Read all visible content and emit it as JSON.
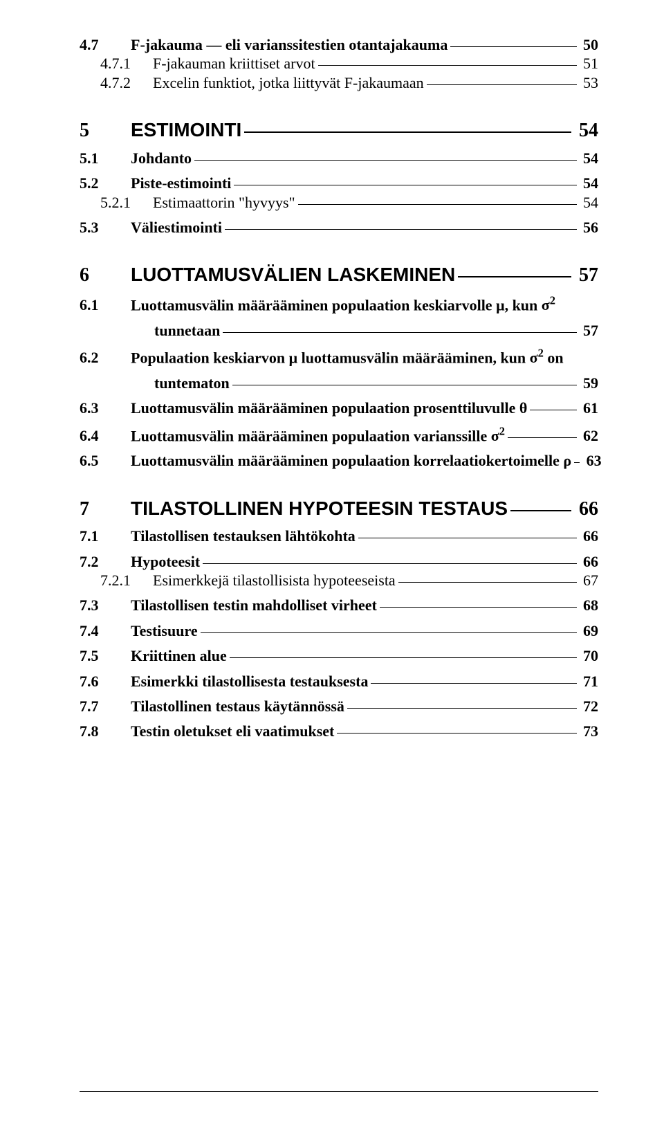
{
  "greek": {
    "mu": "μ",
    "sigma": "σ",
    "theta": "θ",
    "rho": "ρ"
  },
  "sup2": "2",
  "toc": [
    {
      "lvl": "l2",
      "num": "4.7",
      "text": "F-jakauma — eli varianssitestien otantajakauma",
      "page": "50"
    },
    {
      "lvl": "l3",
      "num": "4.7.1",
      "text": "F-jakauman kriittiset arvot",
      "page": "51"
    },
    {
      "lvl": "l3",
      "num": "4.7.2",
      "text": "Excelin funktiot, jotka liittyvät  F-jakaumaan",
      "page": "53",
      "gap": true
    },
    {
      "lvl": "l1",
      "num": "5",
      "text": "ESTIMOINTI",
      "page": "54"
    },
    {
      "lvl": "l2",
      "num": "5.1",
      "text": "Johdanto",
      "page": "54",
      "gap": true
    },
    {
      "lvl": "l2",
      "num": "5.2",
      "text": "Piste-estimointi",
      "page": "54"
    },
    {
      "lvl": "l3",
      "num": "5.2.1",
      "text": "Estimaattorin \"hyvyys\"",
      "page": "54",
      "gap": true
    },
    {
      "lvl": "l2",
      "num": "5.3",
      "text": "Väliestimointi",
      "page": "56"
    },
    {
      "lvl": "l1",
      "num": "6",
      "text": "LUOTTAMUSVÄLIEN LASKEMINEN",
      "page": "57"
    },
    {
      "lvl": "l2",
      "num": "6.1",
      "text_a": "Luottamusvälin määrääminen populaation keskiarvolle  ",
      "greek_a": "mu",
      "text_b": ",  kun  ",
      "greek_b": "sigma",
      "sup_b": true,
      "wrap": true,
      "text_c": "tunnetaan",
      "page": "57",
      "gap": true
    },
    {
      "lvl": "l2",
      "num": "6.2",
      "text_a": "Populaation keskiarvon  ",
      "greek_a": "mu",
      "text_b": "  luottamusvälin määrääminen, kun  ",
      "greek_b": "sigma",
      "sup_b": true,
      "text_d": "  on",
      "wrap": true,
      "text_c": "tuntematon",
      "page": "59",
      "gap": true
    },
    {
      "lvl": "l2",
      "num": "6.3",
      "text_a": "Luottamusvälin määrääminen populaation prosenttiluvulle  ",
      "greek_a": "theta",
      "page": "61",
      "gap": true
    },
    {
      "lvl": "l2",
      "num": "6.4",
      "text_a": "Luottamusvälin määrääminen populaation varianssille  ",
      "greek_a": "sigma",
      "sup_a": true,
      "page": "62",
      "gap": true
    },
    {
      "lvl": "l2",
      "num": "6.5",
      "text_a": "Luottamusvälin määrääminen populaation korrelaatiokertoimelle  ",
      "greek_a": "rho",
      "page": "63"
    },
    {
      "lvl": "l1",
      "num": "7",
      "text": "TILASTOLLINEN HYPOTEESIN TESTAUS",
      "page": "66"
    },
    {
      "lvl": "l2",
      "num": "7.1",
      "text": "Tilastollisen testauksen lähtökohta",
      "page": "66",
      "gap": true
    },
    {
      "lvl": "l2",
      "num": "7.2",
      "text": "Hypoteesit",
      "page": "66"
    },
    {
      "lvl": "l3",
      "num": "7.2.1",
      "text": "Esimerkkejä tilastollisista hypoteeseista",
      "page": "67",
      "gap": true
    },
    {
      "lvl": "l2",
      "num": "7.3",
      "text": "Tilastollisen testin mahdolliset virheet",
      "page": "68",
      "gap": true
    },
    {
      "lvl": "l2",
      "num": "7.4",
      "text": "Testisuure",
      "page": "69",
      "gap": true
    },
    {
      "lvl": "l2",
      "num": "7.5",
      "text": "Kriittinen alue",
      "page": "70",
      "gap": true
    },
    {
      "lvl": "l2",
      "num": "7.6",
      "text": "Esimerkki tilastollisesta testauksesta",
      "page": "71",
      "gap": true
    },
    {
      "lvl": "l2",
      "num": "7.7",
      "text": "Tilastollinen testaus käytännössä",
      "page": "72",
      "gap": true
    },
    {
      "lvl": "l2",
      "num": "7.8",
      "text": "Testin oletukset eli vaatimukset",
      "page": "73"
    }
  ]
}
